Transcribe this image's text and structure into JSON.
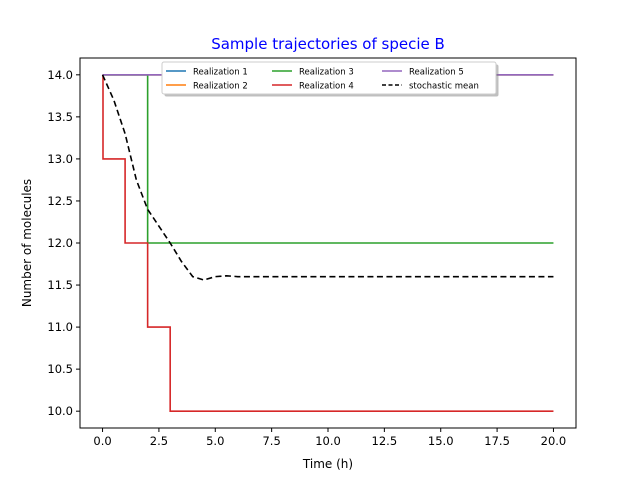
{
  "chart_data": {
    "type": "line",
    "title": "Sample trajectories of specie B",
    "xlabel": "Time (h)",
    "ylabel": "Number of molecules",
    "xlim": [
      -1.0,
      21.0
    ],
    "ylim": [
      9.8,
      14.2
    ],
    "x_ticks": [
      0.0,
      2.5,
      5.0,
      7.5,
      10.0,
      12.5,
      15.0,
      17.5,
      20.0
    ],
    "x_tick_labels": [
      "0.0",
      "2.5",
      "5.0",
      "7.5",
      "10.0",
      "12.5",
      "15.0",
      "17.5",
      "20.0"
    ],
    "y_ticks": [
      10.0,
      10.5,
      11.0,
      11.5,
      12.0,
      12.5,
      13.0,
      13.5,
      14.0
    ],
    "y_tick_labels": [
      "10.0",
      "10.5",
      "11.0",
      "11.5",
      "12.0",
      "12.5",
      "13.0",
      "13.5",
      "14.0"
    ],
    "grid": false,
    "legend_position": "top-center",
    "series": [
      {
        "name": "Realization 1",
        "color": "#1f77b4",
        "style": "solid",
        "step": true,
        "points": [
          [
            0.0,
            14.0
          ],
          [
            20.0,
            14.0
          ]
        ]
      },
      {
        "name": "Realization 2",
        "color": "#ff7f0e",
        "style": "solid",
        "step": true,
        "points": [
          [
            0.0,
            14.0
          ],
          [
            20.0,
            14.0
          ]
        ]
      },
      {
        "name": "Realization 3",
        "color": "#2ca02c",
        "style": "solid",
        "step": true,
        "points": [
          [
            0.0,
            14.0
          ],
          [
            2.0,
            12.0
          ],
          [
            20.0,
            12.0
          ]
        ]
      },
      {
        "name": "Realization 4",
        "color": "#d62728",
        "style": "solid",
        "step": true,
        "points": [
          [
            0.0,
            14.0
          ],
          [
            0.02,
            13.0
          ],
          [
            1.0,
            12.0
          ],
          [
            2.0,
            11.0
          ],
          [
            3.0,
            10.0
          ],
          [
            20.0,
            10.0
          ]
        ]
      },
      {
        "name": "Realization 5",
        "color": "#9467bd",
        "style": "solid",
        "step": true,
        "points": [
          [
            0.0,
            14.0
          ],
          [
            20.0,
            14.0
          ]
        ]
      },
      {
        "name": "stochastic mean",
        "color": "#000000",
        "style": "dashed",
        "step": false,
        "points": [
          [
            0.0,
            14.0
          ],
          [
            0.5,
            13.7
          ],
          [
            1.0,
            13.3
          ],
          [
            1.5,
            12.75
          ],
          [
            2.0,
            12.4
          ],
          [
            2.5,
            12.2
          ],
          [
            3.0,
            12.0
          ],
          [
            3.5,
            11.78
          ],
          [
            4.0,
            11.6
          ],
          [
            4.5,
            11.56
          ],
          [
            5.0,
            11.6
          ],
          [
            5.5,
            11.61
          ],
          [
            6.0,
            11.6
          ],
          [
            7.0,
            11.6
          ],
          [
            10.0,
            11.6
          ],
          [
            15.0,
            11.6
          ],
          [
            20.0,
            11.6
          ]
        ]
      }
    ]
  },
  "colors": {
    "title": "#0000ff",
    "axis": "#000000",
    "legend_border": "#cccccc",
    "legend_shadow": "#7f7f7f"
  }
}
